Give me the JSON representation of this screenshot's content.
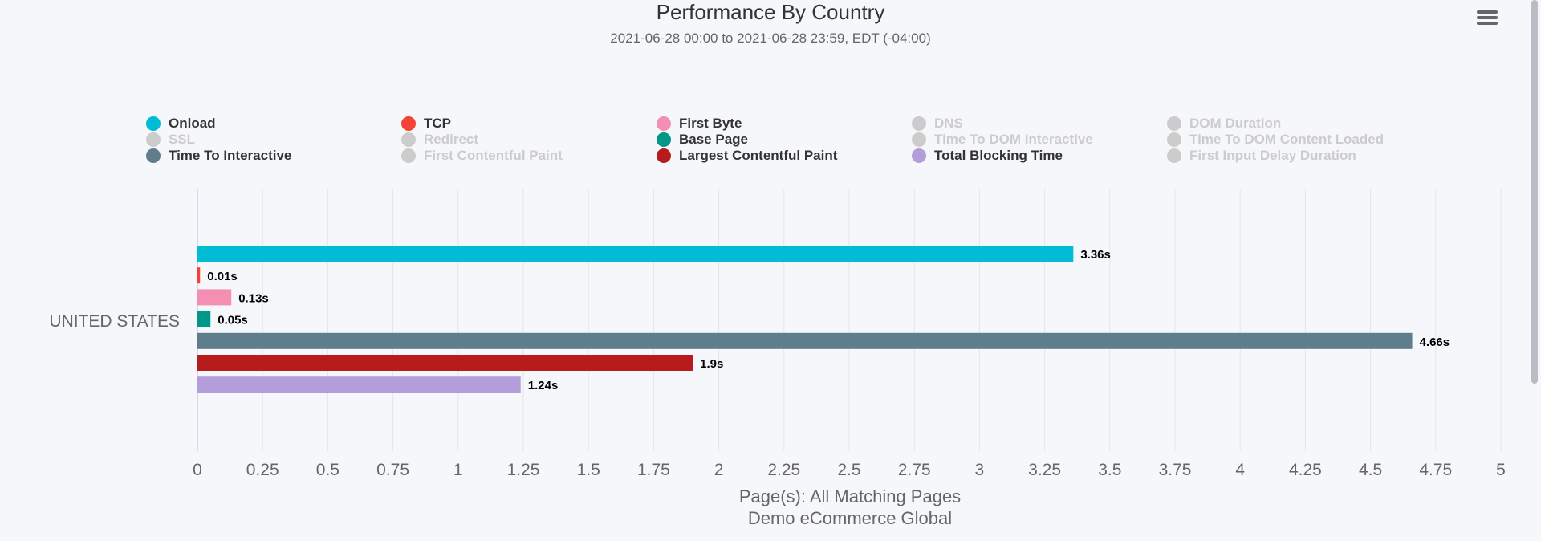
{
  "header": {
    "title": "Performance By Country",
    "subtitle": "2021-06-28 00:00 to 2021-06-28 23:59, EDT (-04:00)",
    "menu_icon": "hamburger-menu-icon"
  },
  "legend": [
    {
      "label": "Onload",
      "color": "#00bcd4",
      "active": true
    },
    {
      "label": "TCP",
      "color": "#f44336",
      "active": true
    },
    {
      "label": "First Byte",
      "color": "#f48fb1",
      "active": true
    },
    {
      "label": "DNS",
      "color": "#cccccc",
      "active": false
    },
    {
      "label": "DOM Duration",
      "color": "#cccccc",
      "active": false
    },
    {
      "label": "SSL",
      "color": "#cccccc",
      "active": false
    },
    {
      "label": "Redirect",
      "color": "#cccccc",
      "active": false
    },
    {
      "label": "Base Page",
      "color": "#009688",
      "active": true
    },
    {
      "label": "Time To DOM Interactive",
      "color": "#cccccc",
      "active": false
    },
    {
      "label": "Time To DOM Content Loaded",
      "color": "#cccccc",
      "active": false
    },
    {
      "label": "Time To Interactive",
      "color": "#607d8b",
      "active": true
    },
    {
      "label": "First Contentful Paint",
      "color": "#cccccc",
      "active": false
    },
    {
      "label": "Largest Contentful Paint",
      "color": "#b71c1c",
      "active": true
    },
    {
      "label": "Total Blocking Time",
      "color": "#b39ddb",
      "active": true
    },
    {
      "label": "First Input Delay Duration",
      "color": "#cccccc",
      "active": false
    }
  ],
  "chart_data": {
    "type": "bar",
    "orientation": "horizontal",
    "categories": [
      "UNITED STATES"
    ],
    "series": [
      {
        "name": "Onload",
        "color": "#00bcd4",
        "values": [
          3.36
        ],
        "label": "3.36s"
      },
      {
        "name": "TCP",
        "color": "#f44336",
        "values": [
          0.01
        ],
        "label": "0.01s"
      },
      {
        "name": "First Byte",
        "color": "#f48fb1",
        "values": [
          0.13
        ],
        "label": "0.13s"
      },
      {
        "name": "Base Page",
        "color": "#009688",
        "values": [
          0.05
        ],
        "label": "0.05s"
      },
      {
        "name": "Time To Interactive",
        "color": "#607d8b",
        "values": [
          4.66
        ],
        "label": "4.66s"
      },
      {
        "name": "Largest Contentful Paint",
        "color": "#b71c1c",
        "values": [
          1.9
        ],
        "label": "1.9s"
      },
      {
        "name": "Total Blocking Time",
        "color": "#b39ddb",
        "values": [
          1.24
        ],
        "label": "1.24s"
      }
    ],
    "xlim": [
      0,
      5
    ],
    "x_ticks": [
      "0",
      "0.25",
      "0.5",
      "0.75",
      "1",
      "1.25",
      "1.5",
      "1.75",
      "2",
      "2.25",
      "2.5",
      "2.75",
      "3",
      "3.25",
      "3.5",
      "3.75",
      "4",
      "4.25",
      "4.5",
      "4.75",
      "5"
    ],
    "grid": true,
    "legend_placement": "top",
    "caption_lines": [
      "Page(s): All Matching Pages",
      "Demo eCommerce Global"
    ]
  }
}
